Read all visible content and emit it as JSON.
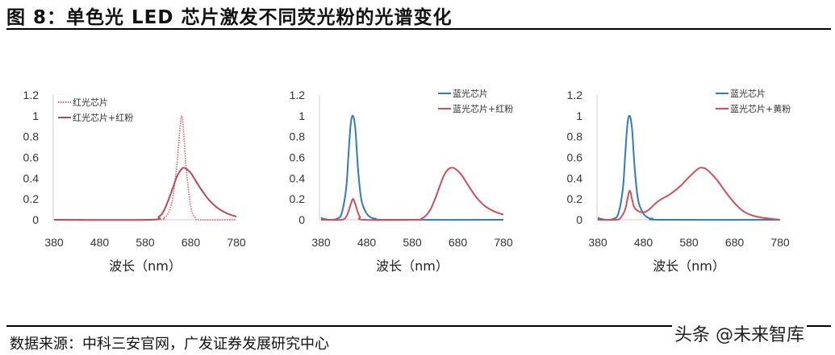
{
  "figure": {
    "title": "图 8：单色光 LED 芯片激发不同荧光粉的光谱变化",
    "source": "数据来源：中科三安官网，广发证券发展研究中心",
    "watermark": "头条 @未来智库"
  },
  "colors": {
    "red": "#d0505a",
    "red_dark": "#b84a55",
    "blue": "#2f7bbf",
    "axis": "#cccccc"
  },
  "chart_data": [
    {
      "type": "line",
      "title": "",
      "xlabel": "波长（nm）",
      "ylabel": "",
      "xlim": [
        380,
        780
      ],
      "ylim": [
        0,
        1.2
      ],
      "xticks": [
        380,
        480,
        580,
        680,
        780
      ],
      "yticks": [
        0,
        0.2,
        0.4,
        0.6,
        0.8,
        1,
        1.2
      ],
      "ytick_labels": [
        "0",
        "0.2",
        "0.4",
        "0.6",
        "0.8",
        "1",
        "1.2"
      ],
      "legend_position": "upper-left",
      "series": [
        {
          "name": "红光芯片",
          "style": "dotted",
          "color": "#e0606a",
          "x": [
            380,
            600,
            620,
            630,
            640,
            650,
            655,
            660,
            665,
            670,
            680,
            690,
            700,
            780
          ],
          "y": [
            0,
            0,
            0.02,
            0.06,
            0.2,
            0.55,
            0.82,
            1.0,
            0.8,
            0.5,
            0.12,
            0.02,
            0,
            0
          ]
        },
        {
          "name": "红光芯片+红粉",
          "style": "solid",
          "color": "#b84a55",
          "x": [
            380,
            590,
            610,
            620,
            630,
            640,
            650,
            660,
            665,
            670,
            680,
            690,
            700,
            720,
            740,
            760,
            780
          ],
          "y": [
            0,
            0,
            0.03,
            0.08,
            0.18,
            0.3,
            0.42,
            0.49,
            0.5,
            0.49,
            0.45,
            0.38,
            0.31,
            0.19,
            0.11,
            0.06,
            0.03
          ]
        }
      ]
    },
    {
      "type": "line",
      "title": "",
      "xlabel": "波长（nm）",
      "ylabel": "",
      "xlim": [
        380,
        780
      ],
      "ylim": [
        0,
        1.2
      ],
      "xticks": [
        380,
        480,
        580,
        680,
        780
      ],
      "yticks": [
        0,
        0.2,
        0.4,
        0.6,
        0.8,
        1,
        1.2
      ],
      "ytick_labels": [
        "0",
        "0.2",
        "0.4",
        "0.6",
        "0.8",
        "1",
        "1.2"
      ],
      "legend_position": "upper-right",
      "series": [
        {
          "name": "蓝光芯片",
          "style": "solid",
          "color": "#2f7bbf",
          "x": [
            380,
            385,
            400,
            415,
            425,
            435,
            440,
            445,
            450,
            455,
            460,
            465,
            470,
            480,
            490,
            500,
            520,
            780
          ],
          "y": [
            0.02,
            0.01,
            0,
            0.01,
            0.06,
            0.3,
            0.62,
            0.92,
            1.0,
            0.88,
            0.55,
            0.3,
            0.16,
            0.06,
            0.02,
            0.01,
            0,
            0
          ]
        },
        {
          "name": "蓝光芯片+红粉",
          "style": "solid",
          "color": "#d0505a",
          "x": [
            380,
            425,
            435,
            440,
            445,
            450,
            455,
            460,
            465,
            475,
            590,
            600,
            610,
            620,
            630,
            640,
            650,
            660,
            670,
            680,
            690,
            700,
            720,
            740,
            760,
            780
          ],
          "y": [
            0,
            0,
            0.03,
            0.08,
            0.15,
            0.2,
            0.15,
            0.08,
            0.03,
            0,
            0,
            0.01,
            0.04,
            0.1,
            0.2,
            0.32,
            0.43,
            0.49,
            0.5,
            0.47,
            0.42,
            0.35,
            0.22,
            0.13,
            0.08,
            0.05
          ]
        }
      ]
    },
    {
      "type": "line",
      "title": "",
      "xlabel": "波长（nm）",
      "ylabel": "",
      "xlim": [
        380,
        780
      ],
      "ylim": [
        0,
        1.2
      ],
      "xticks": [
        380,
        480,
        580,
        680,
        780
      ],
      "yticks": [
        0,
        0.2,
        0.4,
        0.6,
        0.8,
        1,
        1.2
      ],
      "ytick_labels": [
        "0",
        "0.2",
        "0.4",
        "0.6",
        "0.8",
        "1",
        "1.2"
      ],
      "legend_position": "upper-right",
      "series": [
        {
          "name": "蓝光芯片",
          "style": "solid",
          "color": "#2f7bbf",
          "x": [
            380,
            385,
            400,
            415,
            425,
            435,
            440,
            445,
            450,
            455,
            460,
            465,
            470,
            480,
            490,
            500,
            520,
            780
          ],
          "y": [
            0.02,
            0.01,
            0,
            0.01,
            0.06,
            0.3,
            0.62,
            0.92,
            1.0,
            0.88,
            0.55,
            0.3,
            0.16,
            0.06,
            0.02,
            0.01,
            0,
            0
          ]
        },
        {
          "name": "蓝光芯片+黄粉",
          "style": "solid",
          "color": "#d0505a",
          "x": [
            380,
            420,
            430,
            440,
            445,
            450,
            455,
            460,
            470,
            480,
            490,
            500,
            510,
            520,
            540,
            560,
            580,
            600,
            610,
            620,
            640,
            660,
            680,
            700,
            720,
            740,
            760,
            780
          ],
          "y": [
            0,
            0,
            0.02,
            0.1,
            0.2,
            0.28,
            0.2,
            0.12,
            0.08,
            0.07,
            0.09,
            0.13,
            0.17,
            0.2,
            0.25,
            0.32,
            0.41,
            0.49,
            0.5,
            0.48,
            0.39,
            0.27,
            0.16,
            0.08,
            0.04,
            0.02,
            0.01,
            0.0
          ]
        }
      ]
    }
  ]
}
